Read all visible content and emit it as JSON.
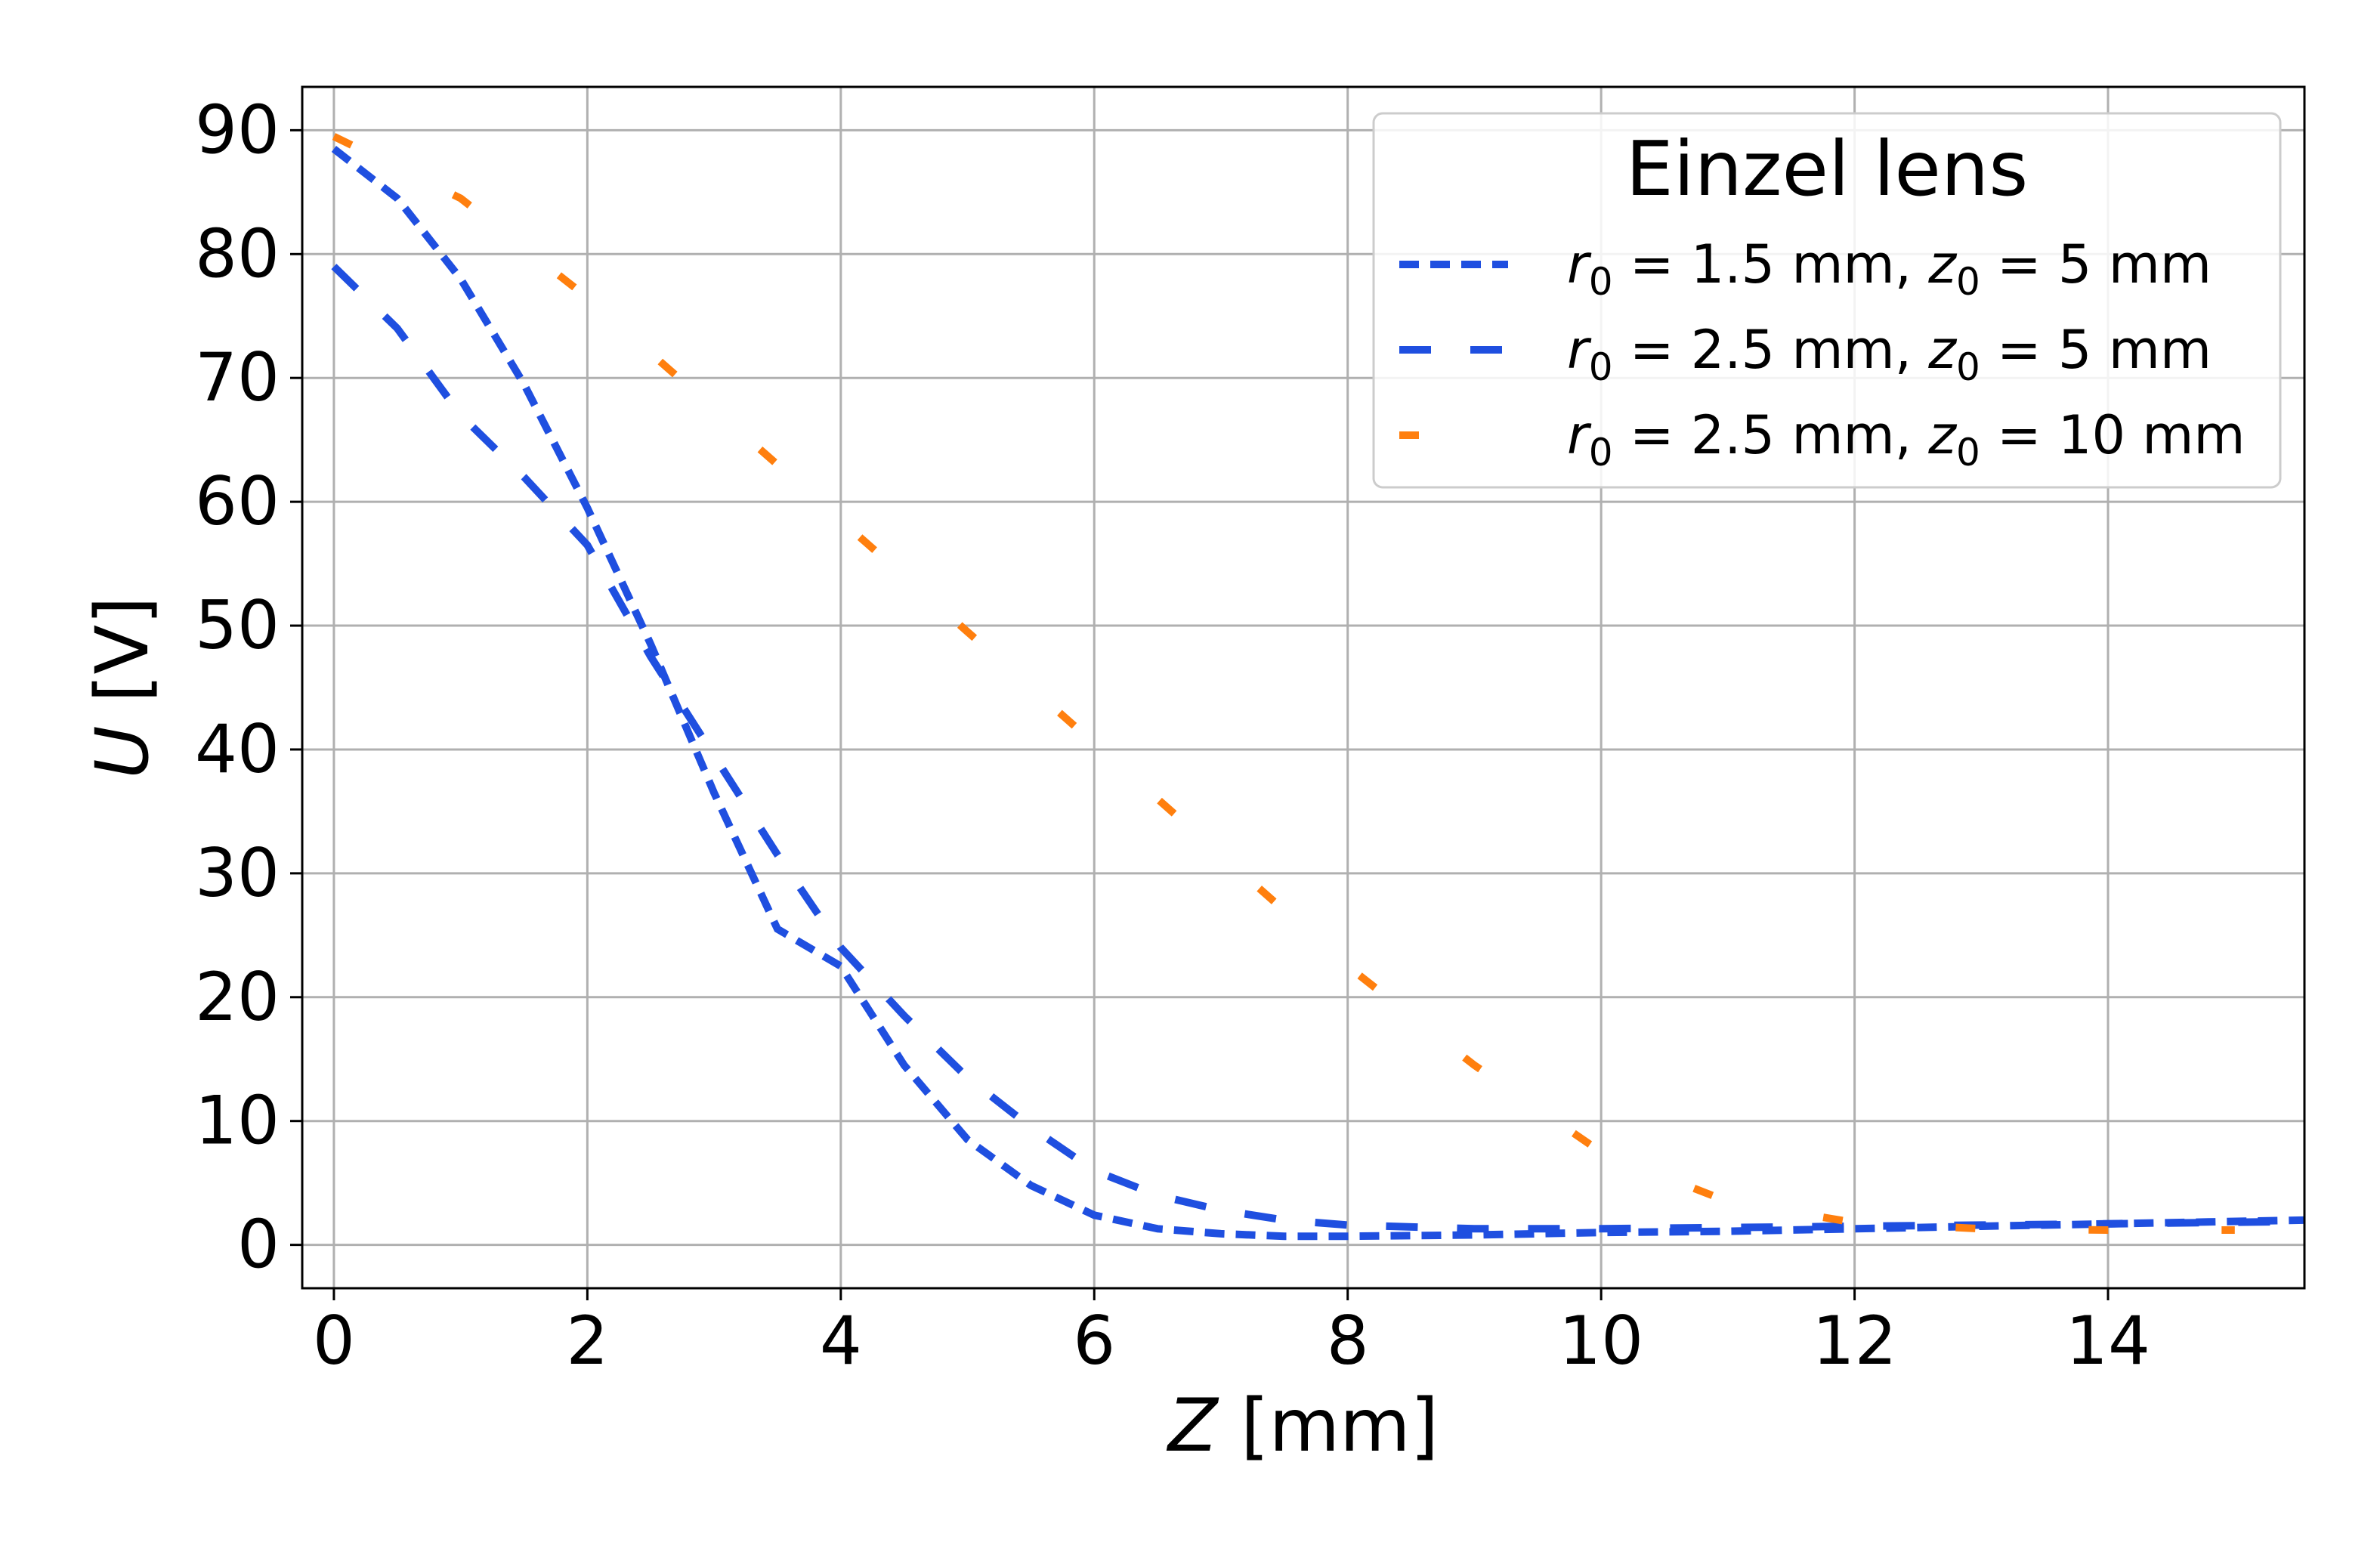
{
  "chart_data": {
    "type": "line",
    "title": "",
    "xlabel": "Z [mm]",
    "ylabel": "U [V]",
    "xlim": [
      -0.25,
      15.55
    ],
    "ylim": [
      -3.5,
      93.5
    ],
    "xticks": [
      "0",
      "2",
      "4",
      "6",
      "8",
      "10",
      "12",
      "14"
    ],
    "yticks": [
      "0",
      "10",
      "20",
      "30",
      "40",
      "50",
      "60",
      "70",
      "80",
      "90"
    ],
    "grid": true,
    "legend": {
      "title": "Einzel lens",
      "placement": "top-right"
    },
    "series": [
      {
        "name": "r_0 = 1.5 mm, z_0 = 5 mm",
        "legend_parts": [
          "r",
          "0",
          " = 1.5 mm, ",
          "z",
          "0",
          " = 5 mm"
        ],
        "color": "#1f4fe0",
        "dash": "dense",
        "x": [
          0.0,
          0.5,
          1.0,
          1.5,
          2.0,
          2.5,
          3.0,
          3.5,
          4.0,
          4.5,
          5.0,
          5.5,
          6.0,
          6.5,
          7.0,
          7.5,
          8.0,
          9.0,
          10.0,
          11.0,
          12.0,
          13.0,
          14.0,
          15.55
        ],
        "y": [
          88.5,
          84.5,
          78.0,
          69.5,
          59.5,
          48.5,
          36.5,
          25.5,
          22.5,
          14.5,
          8.5,
          4.8,
          2.4,
          1.3,
          0.9,
          0.7,
          0.7,
          0.8,
          1.0,
          1.1,
          1.3,
          1.5,
          1.7,
          2.0
        ]
      },
      {
        "name": "r_0 = 2.5 mm, z_0 = 5 mm",
        "legend_parts": [
          "r",
          "0",
          " = 2.5 mm, ",
          "z",
          "0",
          " = 5 mm"
        ],
        "color": "#1f4fe0",
        "dash": "medium",
        "x": [
          0.0,
          0.5,
          1.0,
          1.5,
          2.0,
          2.5,
          3.0,
          3.5,
          4.0,
          4.5,
          5.0,
          5.5,
          6.0,
          6.5,
          7.0,
          7.5,
          8.0,
          9.0,
          10.0,
          11.0,
          12.0,
          13.0,
          14.0,
          15.55
        ],
        "y": [
          79.0,
          74.0,
          67.0,
          62.0,
          56.5,
          47.5,
          39.5,
          31.5,
          24.0,
          18.5,
          13.5,
          9.5,
          6.0,
          4.0,
          2.8,
          2.0,
          1.6,
          1.3,
          1.3,
          1.4,
          1.5,
          1.6,
          1.7,
          1.9
        ]
      },
      {
        "name": "r_0 = 2.5 mm, z_0 = 10 mm",
        "legend_parts": [
          "r",
          "0",
          " = 2.5 mm, ",
          "z",
          "0",
          " = 10 mm"
        ],
        "color": "#ff7f0e",
        "dash": "sparse",
        "x": [
          0.0,
          1.0,
          2.0,
          3.0,
          4.0,
          5.0,
          6.0,
          7.0,
          8.0,
          9.0,
          10.0,
          11.0,
          12.0,
          13.0,
          14.0,
          15.0
        ],
        "y": [
          89.5,
          84.5,
          76.5,
          67.5,
          58.5,
          49.5,
          40.5,
          31.5,
          22.5,
          14.5,
          7.5,
          3.5,
          1.8,
          1.3,
          1.2,
          1.2
        ]
      }
    ]
  }
}
